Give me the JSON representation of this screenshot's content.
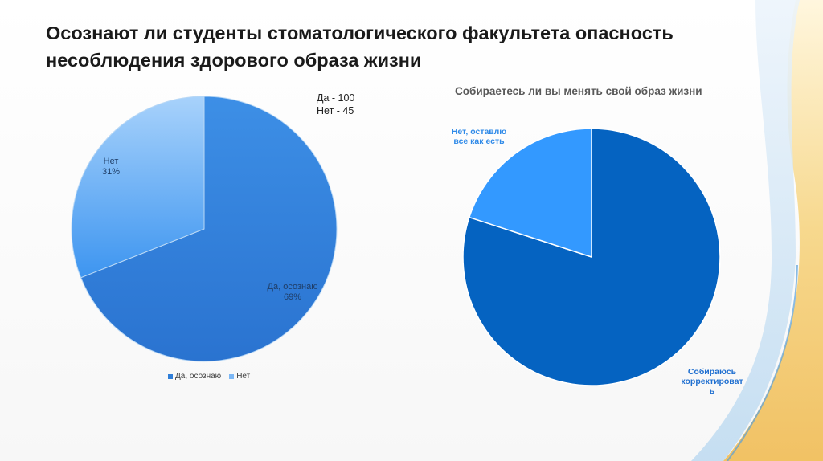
{
  "slide": {
    "title_line1": "Осознают ли студенты стоматологического факультета опасность",
    "title_line2": "несоблюдения здорового образа жизни",
    "note_line1": "Да - 100",
    "note_line2": "Нет - 45"
  },
  "chart_data": [
    {
      "type": "pie",
      "title": "",
      "categories": [
        "Да, осознаю",
        "Нет"
      ],
      "values": [
        69,
        31
      ],
      "labels": [
        {
          "category": "Да, осознаю",
          "percent": "69%"
        },
        {
          "category": "Нет",
          "percent": "31%"
        }
      ],
      "colors": [
        "#2f7ed8",
        "#7db8f5"
      ],
      "legend": "bottom",
      "legend_entries": [
        "Да, осознаю",
        "Нет"
      ]
    },
    {
      "type": "pie",
      "title": "Собираетесь ли вы менять свой образ жизни",
      "categories": [
        "Собираюсь корректировать",
        "Нет, оставлю все как есть"
      ],
      "values": [
        80,
        20
      ],
      "labels": [
        {
          "lines": [
            "Собираюсь",
            "корректироват",
            "ь"
          ]
        },
        {
          "lines": [
            "Нет, оставлю",
            "все как есть"
          ]
        }
      ],
      "colors": [
        "#0563c1",
        "#3399ff"
      ],
      "legend": "none"
    }
  ]
}
